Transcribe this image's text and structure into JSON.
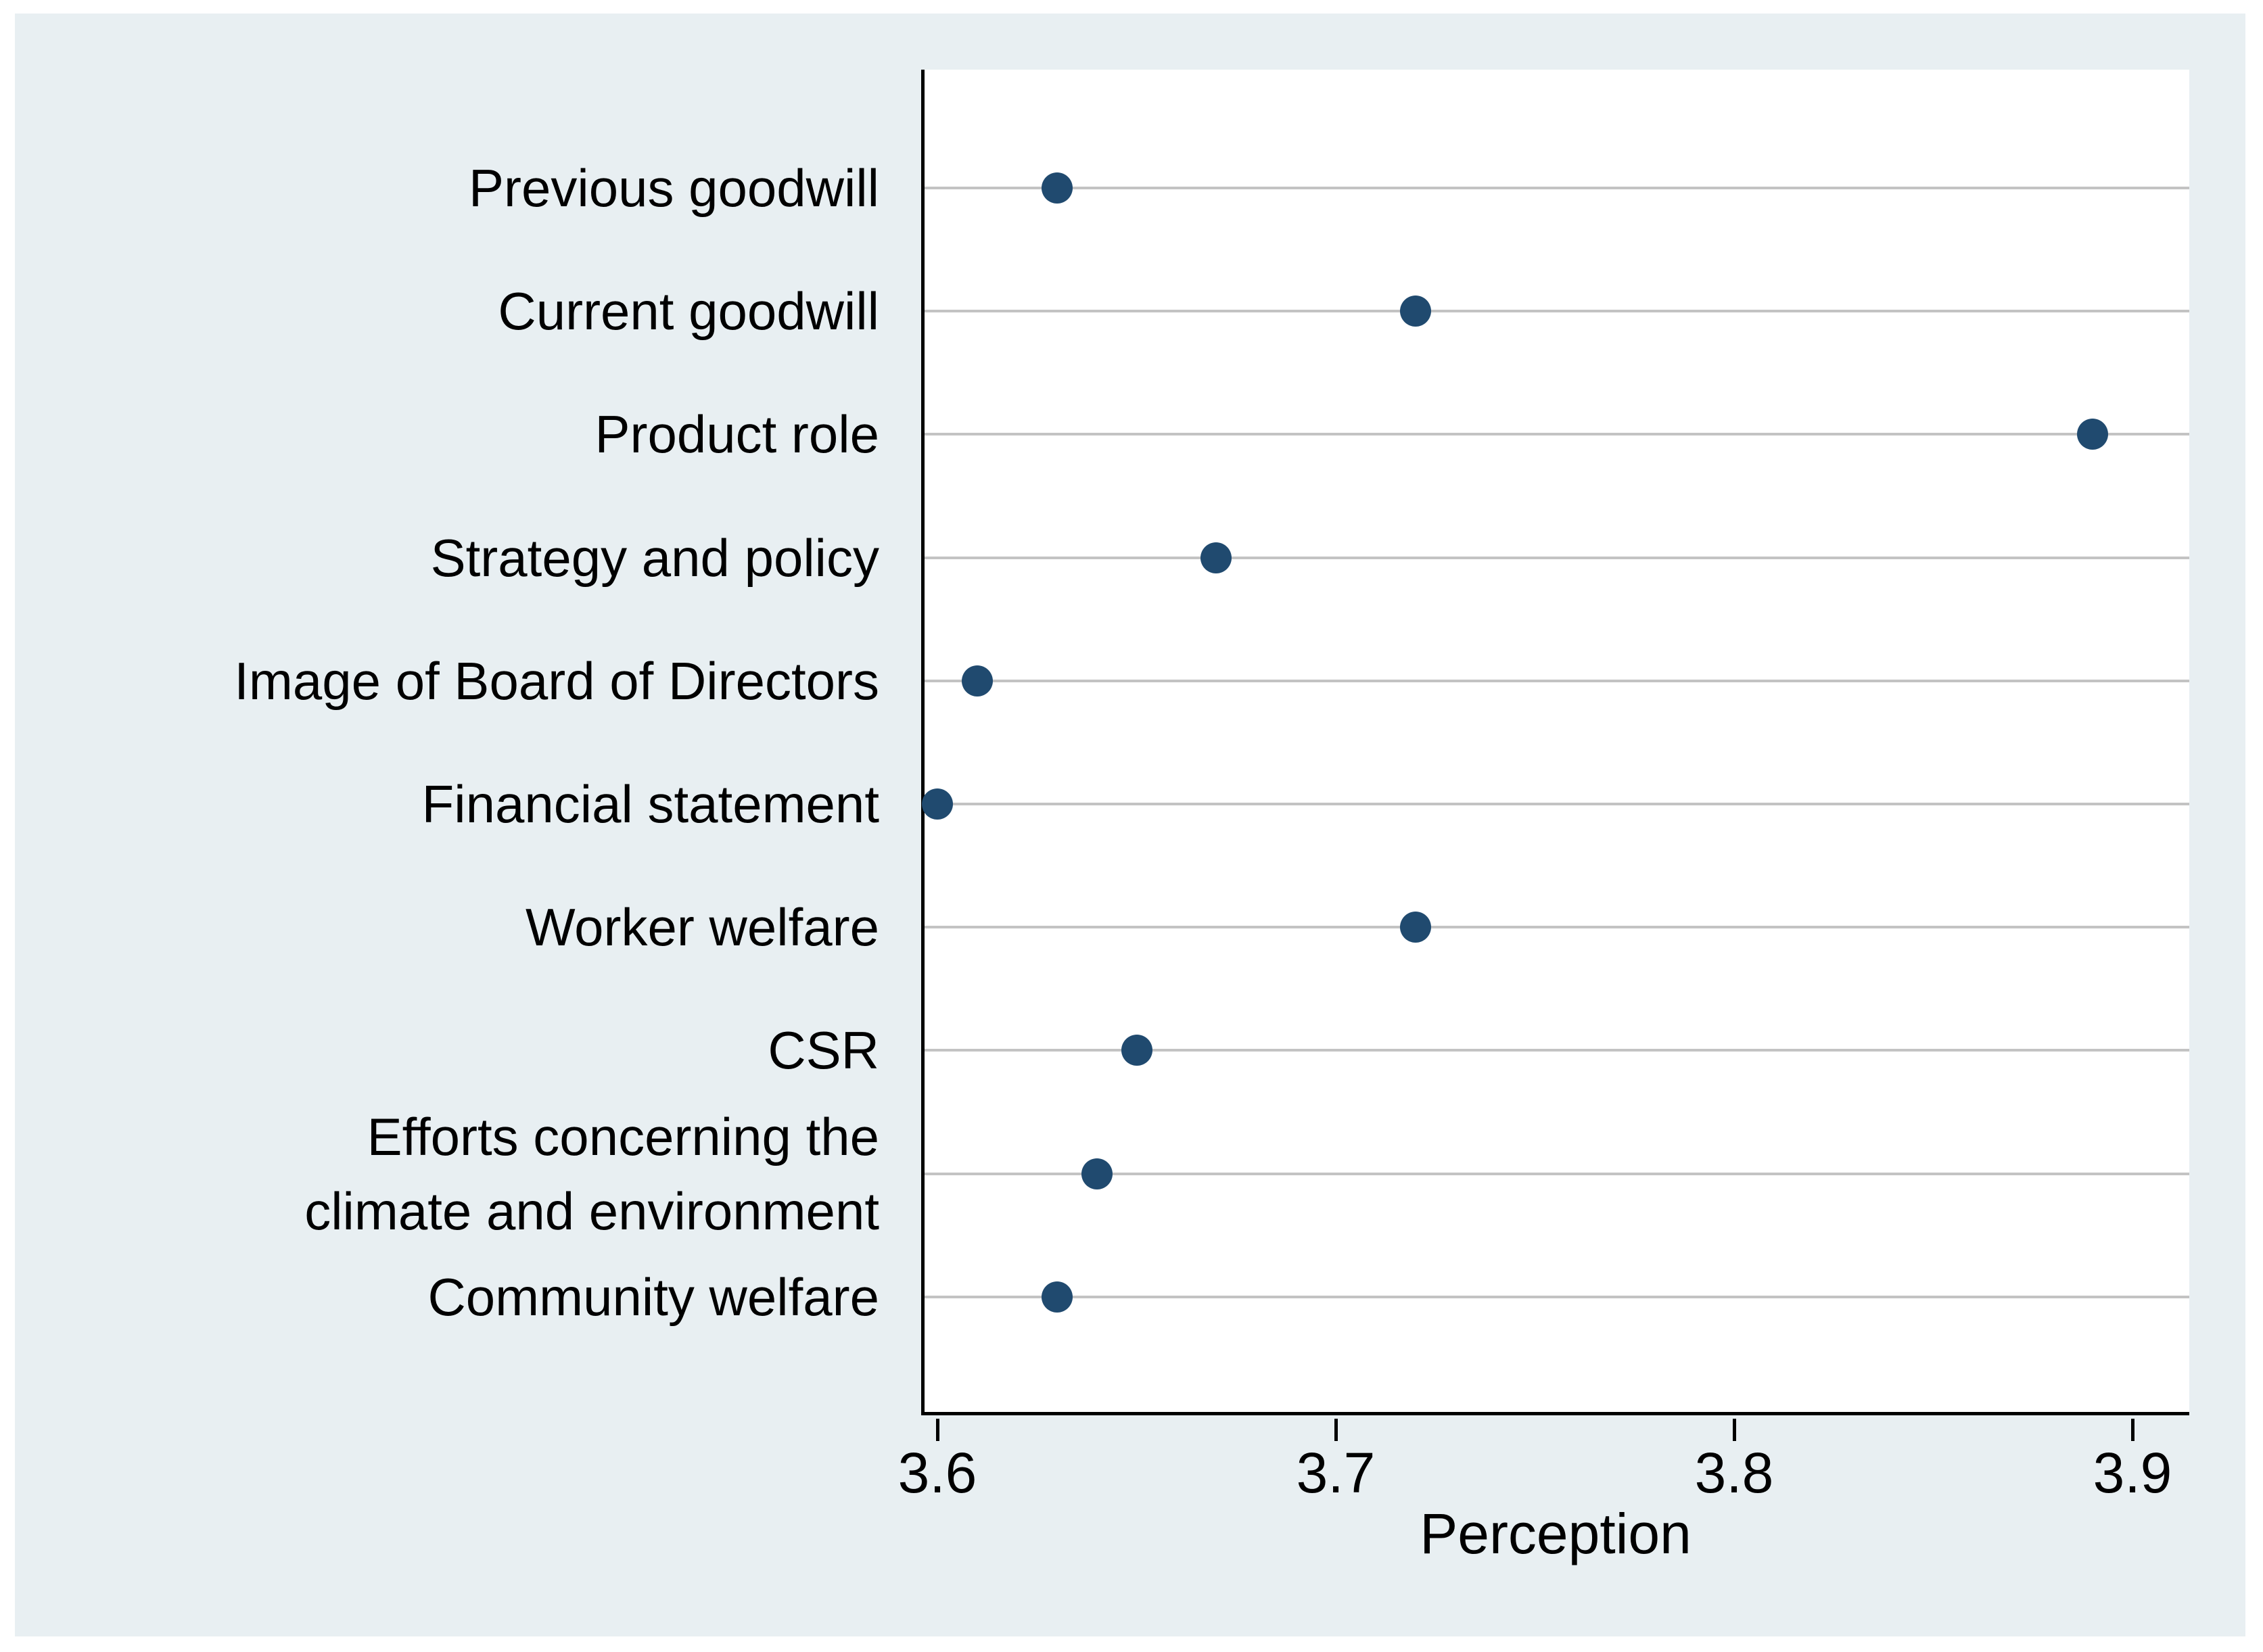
{
  "figure": {
    "panel_background": "#e8eff2",
    "plot_background": "#ffffff",
    "grid_color": "#c3c3c3",
    "axis_color": "#000000",
    "marker_color": "#204a6f",
    "text_color": "#000000"
  },
  "chart_data": {
    "type": "scatter",
    "subtype": "horizontal-dot-plot",
    "title": "",
    "categories": [
      "Previous goodwill",
      "Current goodwill",
      "Product role",
      "Strategy and policy",
      "Image of Board of Directors",
      "Financial statement",
      "Worker welfare",
      "CSR",
      "Efforts concerning the\nclimate and environment",
      "Community welfare"
    ],
    "values": [
      3.63,
      3.72,
      3.89,
      3.67,
      3.61,
      3.6,
      3.72,
      3.65,
      3.64,
      3.63
    ],
    "xlabel": "Perception",
    "x_ticks": [
      3.6,
      3.7,
      3.8,
      3.9
    ],
    "xlim": [
      3.596,
      3.914
    ],
    "grid": "horizontal",
    "legend": "none",
    "marker": "filled-circle"
  }
}
